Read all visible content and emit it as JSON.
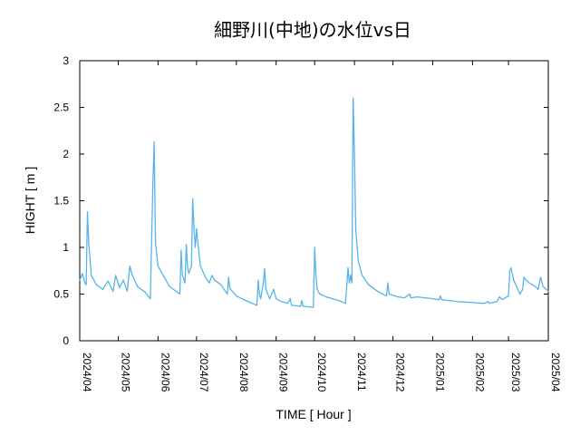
{
  "chart_data": {
    "type": "line",
    "title": "細野川(中地)の水位vs日",
    "xlabel": "TIME [ Hour ]",
    "ylabel": "HIGHT [ m ]",
    "ylim": [
      0,
      3
    ],
    "xlim": [
      "2024-04-01",
      "2025-04-01"
    ],
    "grid": false,
    "yticks": [
      "0",
      "0.5",
      "1",
      "1.5",
      "2",
      "2.5",
      "3"
    ],
    "xticks": [
      "2024/04",
      "2024/05",
      "2024/06",
      "2024/07",
      "2024/08",
      "2024/09",
      "2024/10",
      "2024/11",
      "2024/12",
      "2025/01",
      "2025/02",
      "2025/03",
      "2025/04"
    ],
    "series": [
      {
        "color": "#56b4e9",
        "points": [
          [
            "2024-04-01",
            0.65
          ],
          [
            "2024-04-03",
            0.72
          ],
          [
            "2024-04-05",
            0.62
          ],
          [
            "2024-04-06",
            0.6
          ],
          [
            "2024-04-07",
            1.38
          ],
          [
            "2024-04-08",
            1.05
          ],
          [
            "2024-04-10",
            0.7
          ],
          [
            "2024-04-14",
            0.6
          ],
          [
            "2024-04-19",
            0.55
          ],
          [
            "2024-04-23",
            0.64
          ],
          [
            "2024-04-27",
            0.53
          ],
          [
            "2024-04-29",
            0.7
          ],
          [
            "2024-05-02",
            0.57
          ],
          [
            "2024-05-05",
            0.65
          ],
          [
            "2024-05-08",
            0.53
          ],
          [
            "2024-05-10",
            0.8
          ],
          [
            "2024-05-12",
            0.7
          ],
          [
            "2024-05-16",
            0.58
          ],
          [
            "2024-05-22",
            0.52
          ],
          [
            "2024-05-26",
            0.45
          ],
          [
            "2024-05-28",
            1.7
          ],
          [
            "2024-05-29",
            2.13
          ],
          [
            "2024-05-30",
            1.05
          ],
          [
            "2024-06-01",
            0.8
          ],
          [
            "2024-06-05",
            0.7
          ],
          [
            "2024-06-10",
            0.58
          ],
          [
            "2024-06-15",
            0.53
          ],
          [
            "2024-06-18",
            0.5
          ],
          [
            "2024-06-19",
            0.97
          ],
          [
            "2024-06-20",
            0.7
          ],
          [
            "2024-06-22",
            0.62
          ],
          [
            "2024-06-23",
            1.03
          ],
          [
            "2024-06-24",
            0.78
          ],
          [
            "2024-06-25",
            0.72
          ],
          [
            "2024-06-27",
            0.8
          ],
          [
            "2024-06-28",
            1.52
          ],
          [
            "2024-06-29",
            1.2
          ],
          [
            "2024-06-30",
            1.0
          ],
          [
            "2024-07-01",
            1.2
          ],
          [
            "2024-07-02",
            1.05
          ],
          [
            "2024-07-04",
            0.8
          ],
          [
            "2024-07-08",
            0.68
          ],
          [
            "2024-07-11",
            0.62
          ],
          [
            "2024-07-13",
            0.7
          ],
          [
            "2024-07-15",
            0.65
          ],
          [
            "2024-07-20",
            0.6
          ],
          [
            "2024-07-25",
            0.5
          ],
          [
            "2024-07-26",
            0.68
          ],
          [
            "2024-07-27",
            0.56
          ],
          [
            "2024-08-01",
            0.48
          ],
          [
            "2024-08-10",
            0.42
          ],
          [
            "2024-08-17",
            0.38
          ],
          [
            "2024-08-18",
            0.65
          ],
          [
            "2024-08-19",
            0.5
          ],
          [
            "2024-08-20",
            0.45
          ],
          [
            "2024-08-22",
            0.62
          ],
          [
            "2024-08-23",
            0.77
          ],
          [
            "2024-08-24",
            0.55
          ],
          [
            "2024-08-27",
            0.45
          ],
          [
            "2024-08-30",
            0.55
          ],
          [
            "2024-09-01",
            0.45
          ],
          [
            "2024-09-05",
            0.42
          ],
          [
            "2024-09-10",
            0.4
          ],
          [
            "2024-09-12",
            0.45
          ],
          [
            "2024-09-13",
            0.38
          ],
          [
            "2024-09-20",
            0.37
          ],
          [
            "2024-09-21",
            0.43
          ],
          [
            "2024-09-22",
            0.37
          ],
          [
            "2024-09-29",
            0.36
          ],
          [
            "2024-09-30",
            0.36
          ],
          [
            "2024-10-01",
            1.0
          ],
          [
            "2024-10-02",
            0.7
          ],
          [
            "2024-10-03",
            0.55
          ],
          [
            "2024-10-05",
            0.5
          ],
          [
            "2024-10-10",
            0.47
          ],
          [
            "2024-10-15",
            0.45
          ],
          [
            "2024-10-20",
            0.43
          ],
          [
            "2024-10-25",
            0.4
          ],
          [
            "2024-10-27",
            0.78
          ],
          [
            "2024-10-28",
            0.62
          ],
          [
            "2024-10-29",
            0.7
          ],
          [
            "2024-10-30",
            0.62
          ],
          [
            "2024-10-31",
            2.6
          ],
          [
            "2024-11-01",
            2.0
          ],
          [
            "2024-11-02",
            1.2
          ],
          [
            "2024-11-04",
            0.85
          ],
          [
            "2024-11-07",
            0.7
          ],
          [
            "2024-11-12",
            0.6
          ],
          [
            "2024-11-20",
            0.52
          ],
          [
            "2024-11-26",
            0.48
          ],
          [
            "2024-11-27",
            0.62
          ],
          [
            "2024-11-28",
            0.5
          ],
          [
            "2024-12-05",
            0.47
          ],
          [
            "2024-12-10",
            0.46
          ],
          [
            "2024-12-14",
            0.5
          ],
          [
            "2024-12-15",
            0.46
          ],
          [
            "2024-12-20",
            0.47
          ],
          [
            "2025-01-01",
            0.45
          ],
          [
            "2025-01-06",
            0.44
          ],
          [
            "2025-01-07",
            0.48
          ],
          [
            "2025-01-08",
            0.44
          ],
          [
            "2025-01-20",
            0.42
          ],
          [
            "2025-02-01",
            0.41
          ],
          [
            "2025-02-10",
            0.4
          ],
          [
            "2025-02-13",
            0.42
          ],
          [
            "2025-02-14",
            0.4
          ],
          [
            "2025-02-20",
            0.42
          ],
          [
            "2025-02-22",
            0.47
          ],
          [
            "2025-02-24",
            0.44
          ],
          [
            "2025-03-01",
            0.48
          ],
          [
            "2025-03-02",
            0.75
          ],
          [
            "2025-03-03",
            0.78
          ],
          [
            "2025-03-05",
            0.65
          ],
          [
            "2025-03-10",
            0.5
          ],
          [
            "2025-03-12",
            0.55
          ],
          [
            "2025-03-13",
            0.68
          ],
          [
            "2025-03-16",
            0.63
          ],
          [
            "2025-03-22",
            0.58
          ],
          [
            "2025-03-24",
            0.55
          ],
          [
            "2025-03-26",
            0.68
          ],
          [
            "2025-03-28",
            0.58
          ],
          [
            "2025-04-01",
            0.53
          ]
        ]
      }
    ]
  }
}
